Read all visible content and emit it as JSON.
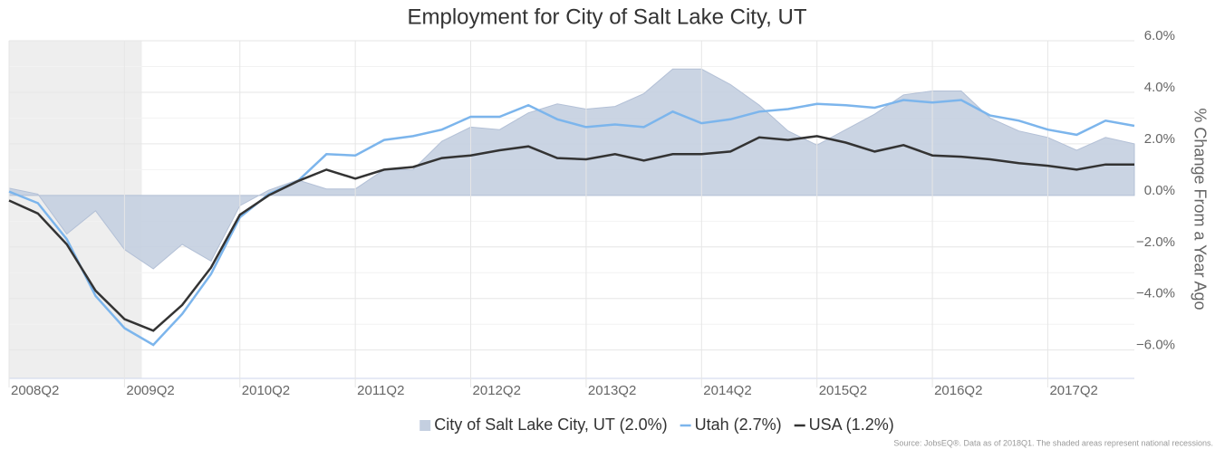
{
  "chart_data": {
    "type": "line",
    "title": "Employment for City of Salt Lake City, UT",
    "y_axis_label": "% Change From a Year Ago",
    "source": "Source: JobsEQ®. Data as of 2018Q1. The shaded areas represent national recessions.",
    "categories": [
      "2008Q2",
      null,
      null,
      null,
      "2009Q2",
      null,
      null,
      null,
      "2010Q2",
      null,
      null,
      null,
      "2011Q2",
      null,
      null,
      null,
      "2012Q2",
      null,
      null,
      null,
      "2013Q2",
      null,
      null,
      null,
      "2014Q2",
      null,
      null,
      null,
      "2015Q2",
      null,
      null,
      null,
      "2016Q2",
      null,
      null,
      null,
      "2017Q2",
      null,
      null,
      null
    ],
    "shaded_regions": [
      {
        "from": 0,
        "to": 4.6
      }
    ],
    "series": [
      {
        "name": "City of Salt Lake City, UT (2.0%)",
        "kind": "area",
        "color": "#c4cfe0",
        "values": [
          0.28,
          0.05,
          -1.5,
          -0.6,
          -2.1,
          -2.85,
          -1.9,
          -2.55,
          -0.4,
          0.2,
          0.6,
          0.25,
          0.25,
          1.0,
          1.0,
          2.1,
          2.65,
          2.55,
          3.2,
          3.55,
          3.35,
          3.45,
          3.95,
          4.9,
          4.9,
          4.3,
          3.5,
          2.5,
          1.95,
          2.55,
          3.15,
          3.9,
          4.05,
          4.05,
          3.0,
          2.5,
          2.25,
          1.75,
          2.25,
          2.0
        ]
      },
      {
        "name": "Utah (2.7%)",
        "kind": "line",
        "color": "#7cb5ec",
        "values": [
          0.15,
          -0.3,
          -1.7,
          -3.9,
          -5.15,
          -5.8,
          -4.6,
          -3.05,
          -0.85,
          0.05,
          0.55,
          1.6,
          1.55,
          2.15,
          2.3,
          2.55,
          3.05,
          3.05,
          3.5,
          2.95,
          2.65,
          2.75,
          2.65,
          3.25,
          2.8,
          2.95,
          3.25,
          3.35,
          3.55,
          3.5,
          3.4,
          3.7,
          3.6,
          3.7,
          3.1,
          2.9,
          2.55,
          2.35,
          2.9,
          2.7
        ]
      },
      {
        "name": "USA (1.2%)",
        "kind": "line",
        "color": "#333333",
        "values": [
          -0.2,
          -0.7,
          -1.9,
          -3.7,
          -4.8,
          -5.25,
          -4.25,
          -2.8,
          -0.75,
          0.0,
          0.55,
          1.0,
          0.65,
          1.0,
          1.1,
          1.45,
          1.55,
          1.75,
          1.9,
          1.45,
          1.4,
          1.6,
          1.35,
          1.6,
          1.6,
          1.7,
          2.25,
          2.15,
          2.3,
          2.05,
          1.7,
          1.95,
          1.55,
          1.5,
          1.4,
          1.25,
          1.15,
          1.0,
          1.2,
          1.2
        ]
      }
    ],
    "ylim": [
      -7.1,
      6
    ],
    "yticks": [
      {
        "value": -6,
        "label": "−6.0%"
      },
      {
        "value": -4,
        "label": "−4.0%"
      },
      {
        "value": -2,
        "label": "−2.0%"
      },
      {
        "value": 0,
        "label": "0.0%"
      },
      {
        "value": 2,
        "label": "2.0%"
      },
      {
        "value": 4,
        "label": "4.0%"
      },
      {
        "value": 6,
        "label": "6.0%"
      }
    ],
    "grid": true,
    "minor_grid": true,
    "legend": "bottom"
  }
}
